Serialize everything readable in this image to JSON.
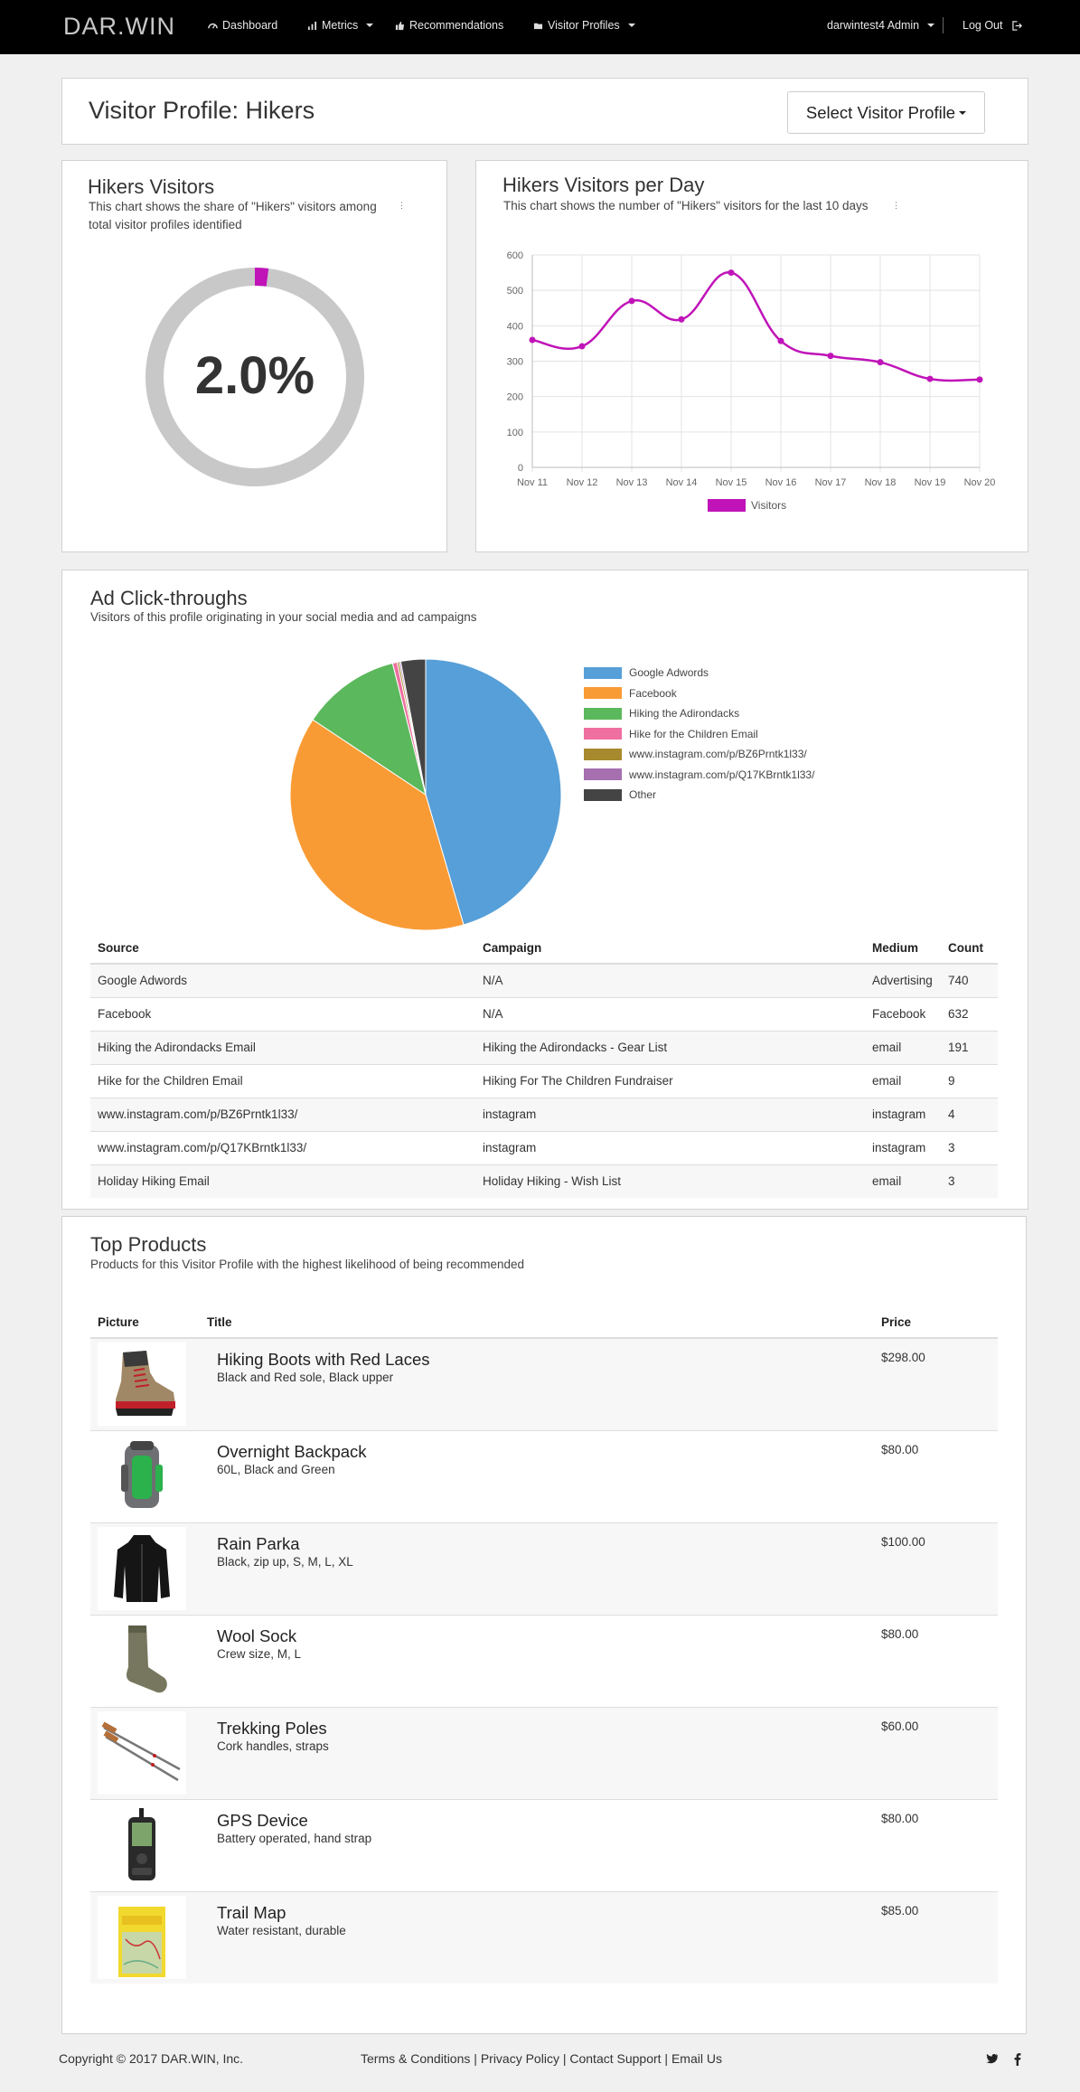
{
  "nav": {
    "brand": "DAR.WIN",
    "items": [
      {
        "label": "Dashboard",
        "icon": "dashboard-icon"
      },
      {
        "label": "Metrics",
        "icon": "bar-chart-icon",
        "dropdown": true
      },
      {
        "label": "Recommendations",
        "icon": "thumbs-up-icon"
      },
      {
        "label": "Visitor Profiles",
        "icon": "folder-icon",
        "dropdown": true
      }
    ],
    "user": "darwintest4 Admin",
    "logout": "Log Out"
  },
  "header": {
    "title": "Visitor Profile: Hikers",
    "select_label": "Select Visitor Profile"
  },
  "share_panel": {
    "title": "Hikers Visitors",
    "subtitle": "This chart shows the share of \"Hikers\" visitors among total visitor profiles identified",
    "value_text": "2.0%",
    "fraction": 0.02,
    "ring_color": "#c8c8c8",
    "accent_color": "#c013b8"
  },
  "per_day_panel": {
    "title": "Hikers Visitors per Day",
    "subtitle": "This chart shows the number of \"Hikers\" visitors for the last 10 days"
  },
  "chart_data": [
    {
      "type": "line",
      "x": [
        "Nov 11",
        "Nov 12",
        "Nov 13",
        "Nov 14",
        "Nov 15",
        "Nov 16",
        "Nov 17",
        "Nov 18",
        "Nov 19",
        "Nov 20"
      ],
      "series": [
        {
          "name": "Visitors",
          "values": [
            360,
            342,
            470,
            418,
            550,
            357,
            315,
            297,
            250,
            248
          ],
          "color": "#c013b8"
        }
      ],
      "ylim": [
        0,
        600
      ],
      "yticks": [
        0,
        100,
        200,
        300,
        400,
        500,
        600
      ],
      "grid": true,
      "legend": "bottom"
    },
    {
      "type": "pie",
      "categories": [
        "Google Adwords",
        "Facebook",
        "Hiking the Adirondacks",
        "Hike for the Children Email",
        "www.instagram.com/p/BZ6Prntk1l33/",
        "www.instagram.com/p/Q17KBrntk1l33/",
        "Other"
      ],
      "values": [
        740,
        632,
        191,
        9,
        4,
        3,
        48
      ],
      "colors": [
        "#569fd8",
        "#f99b35",
        "#5cb85c",
        "#ef6fa0",
        "#a88a2e",
        "#a56fb0",
        "#444444"
      ],
      "legend": "right"
    }
  ],
  "ad_clicks": {
    "title": "Ad Click-throughs",
    "subtitle": "Visitors of this profile originating in your social media and ad campaigns",
    "columns": [
      "Source",
      "Campaign",
      "Medium",
      "Count"
    ],
    "rows": [
      [
        "Google Adwords",
        "N/A",
        "Advertising",
        "740"
      ],
      [
        "Facebook",
        "N/A",
        "Facebook",
        "632"
      ],
      [
        "Hiking the Adirondacks Email",
        "Hiking the Adirondacks - Gear List",
        "email",
        "191"
      ],
      [
        "Hike for the Children Email",
        "Hiking For The Children Fundraiser",
        "email",
        "9"
      ],
      [
        "www.instagram.com/p/BZ6Prntk1l33/",
        "instagram",
        "instagram",
        "4"
      ],
      [
        "www.instagram.com/p/Q17KBrntk1l33/",
        "instagram",
        "instagram",
        "3"
      ],
      [
        "Holiday Hiking Email",
        "Holiday Hiking - Wish List",
        "email",
        "3"
      ]
    ]
  },
  "products": {
    "title": "Top Products",
    "subtitle": "Products for this Visitor Profile with the highest likelihood of being recommended",
    "columns": [
      "Picture",
      "Title",
      "Price"
    ],
    "items": [
      {
        "name": "Hiking Boots with Red Laces",
        "desc": "Black and Red sole, Black upper",
        "price": "$298.00",
        "icon": "hiking-boot-icon"
      },
      {
        "name": "Overnight Backpack",
        "desc": "60L, Black and Green",
        "price": "$80.00",
        "icon": "backpack-icon"
      },
      {
        "name": "Rain Parka",
        "desc": "Black, zip up, S, M, L, XL",
        "price": "$100.00",
        "icon": "parka-icon"
      },
      {
        "name": "Wool Sock",
        "desc": "Crew size, M, L",
        "price": "$80.00",
        "icon": "sock-icon"
      },
      {
        "name": "Trekking Poles",
        "desc": "Cork handles, straps",
        "price": "$60.00",
        "icon": "trekking-poles-icon"
      },
      {
        "name": "GPS Device",
        "desc": "Battery operated, hand strap",
        "price": "$80.00",
        "icon": "gps-device-icon"
      },
      {
        "name": "Trail Map",
        "desc": "Water resistant, durable",
        "price": "$85.00",
        "icon": "trail-map-icon"
      }
    ]
  },
  "footer": {
    "copyright": "Copyright © 2017 DAR.WIN, Inc.",
    "links": [
      "Terms & Conditions",
      "Privacy Policy",
      "Contact Support",
      "Email Us"
    ],
    "social": [
      "twitter-icon",
      "facebook-icon"
    ]
  }
}
